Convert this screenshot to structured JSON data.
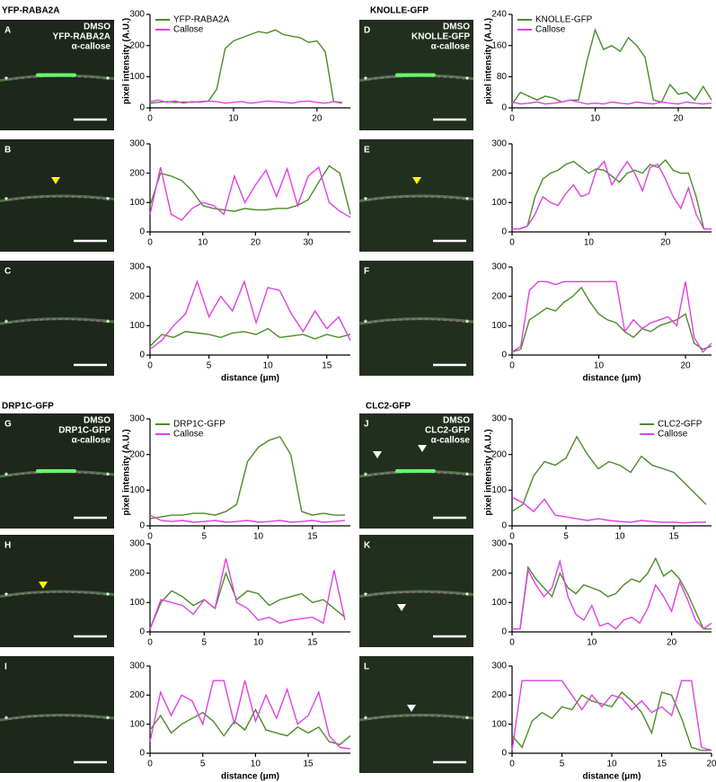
{
  "titles": [
    "YFP-RABA2A",
    "KNOLLE-GFP",
    "DRP1C-GFP",
    "CLC2-GFP"
  ],
  "panels": [
    {
      "letter": "A",
      "labels": [
        "DMSO",
        "YFP-RABA2A",
        "α-callose"
      ]
    },
    {
      "letter": "B"
    },
    {
      "letter": "C"
    },
    {
      "letter": "D",
      "labels": [
        "DMSO",
        "KNOLLE-GFP",
        "α-callose"
      ]
    },
    {
      "letter": "E"
    },
    {
      "letter": "F"
    },
    {
      "letter": "G",
      "labels": [
        "DMSO",
        "DRP1C-GFP",
        "α-callose"
      ]
    },
    {
      "letter": "H"
    },
    {
      "letter": "I"
    },
    {
      "letter": "J",
      "labels": [
        "DMSO",
        "CLC2-GFP",
        "α-callose"
      ]
    },
    {
      "letter": "K"
    },
    {
      "letter": "L"
    }
  ],
  "chart_data": [
    {
      "type": "line",
      "ylabel": "pixel intensity (A.U.)",
      "legend": "upper left",
      "xlim": [
        0,
        24
      ],
      "xticks": [
        0,
        10,
        20
      ],
      "ylim": [
        0,
        300
      ],
      "yticks": [
        0,
        100,
        200,
        300
      ],
      "x": [
        0,
        1,
        2,
        3,
        4,
        5,
        6,
        7,
        8,
        9,
        10,
        11,
        12,
        13,
        14,
        15,
        16,
        17,
        18,
        19,
        20,
        21,
        22,
        23
      ],
      "series": [
        {
          "name": "YFP-RABA2A",
          "color": "#4a8c2a",
          "values": [
            15,
            18,
            20,
            17,
            19,
            18,
            20,
            22,
            60,
            190,
            215,
            225,
            235,
            245,
            240,
            250,
            235,
            230,
            225,
            210,
            215,
            180,
            20,
            15
          ]
        },
        {
          "name": "Callose",
          "color": "#e040e0",
          "values": [
            20,
            25,
            18,
            22,
            15,
            20,
            18,
            22,
            20,
            15,
            18,
            20,
            15,
            18,
            22,
            20,
            18,
            15,
            20,
            22,
            18,
            15,
            20,
            18
          ]
        }
      ]
    },
    {
      "type": "line",
      "xlim": [
        0,
        38
      ],
      "xticks": [
        0,
        10,
        20,
        30
      ],
      "ylim": [
        0,
        300
      ],
      "yticks": [
        0,
        100,
        200,
        300
      ],
      "x": [
        0,
        2,
        4,
        6,
        8,
        10,
        12,
        14,
        16,
        18,
        20,
        22,
        24,
        26,
        28,
        30,
        32,
        34,
        36,
        38
      ],
      "series": [
        {
          "color": "#4a8c2a",
          "values": [
            90,
            200,
            190,
            175,
            140,
            90,
            80,
            75,
            70,
            80,
            75,
            75,
            80,
            80,
            90,
            110,
            170,
            225,
            200,
            60
          ]
        },
        {
          "color": "#e040e0",
          "values": [
            60,
            220,
            60,
            40,
            80,
            100,
            90,
            60,
            190,
            100,
            160,
            210,
            120,
            215,
            90,
            190,
            220,
            100,
            70,
            50
          ]
        }
      ]
    },
    {
      "type": "line",
      "xlabel": "distance (μm)",
      "xlim": [
        0,
        17
      ],
      "xticks": [
        0,
        5,
        10,
        15
      ],
      "ylim": [
        0,
        300
      ],
      "yticks": [
        0,
        100,
        200,
        300
      ],
      "x": [
        0,
        1,
        2,
        3,
        4,
        5,
        6,
        7,
        8,
        9,
        10,
        11,
        12,
        13,
        14,
        15,
        16,
        17
      ],
      "series": [
        {
          "color": "#4a8c2a",
          "values": [
            30,
            70,
            60,
            80,
            75,
            70,
            60,
            75,
            80,
            70,
            90,
            60,
            65,
            70,
            55,
            70,
            60,
            70
          ]
        },
        {
          "color": "#e040e0",
          "values": [
            20,
            50,
            100,
            140,
            250,
            130,
            200,
            150,
            250,
            110,
            230,
            220,
            140,
            80,
            150,
            90,
            130,
            50
          ]
        }
      ]
    },
    {
      "type": "line",
      "ylabel": "pixel intensity (A.U.)",
      "legend": "upper left",
      "xlim": [
        0,
        24
      ],
      "xticks": [
        0,
        10,
        20
      ],
      "ylim": [
        0,
        240
      ],
      "yticks": [
        0,
        80,
        160,
        240
      ],
      "x": [
        0,
        1,
        2,
        3,
        4,
        5,
        6,
        7,
        8,
        9,
        10,
        11,
        12,
        13,
        14,
        15,
        16,
        17,
        18,
        19,
        20,
        21,
        22,
        23,
        24
      ],
      "series": [
        {
          "name": "KNOLLE-GFP",
          "color": "#4a8c2a",
          "values": [
            10,
            40,
            30,
            20,
            30,
            25,
            15,
            20,
            20,
            120,
            200,
            150,
            160,
            145,
            180,
            160,
            130,
            20,
            15,
            60,
            35,
            40,
            20,
            55,
            20
          ]
        },
        {
          "name": "Callose",
          "color": "#e040e0",
          "values": [
            15,
            10,
            12,
            15,
            10,
            12,
            15,
            20,
            15,
            10,
            12,
            10,
            15,
            12,
            10,
            15,
            12,
            10,
            15,
            12,
            10,
            15,
            12,
            10,
            12
          ]
        }
      ]
    },
    {
      "type": "line",
      "xlim": [
        0,
        26
      ],
      "xticks": [
        0,
        10,
        20
      ],
      "ylim": [
        0,
        300
      ],
      "yticks": [
        0,
        100,
        200,
        300
      ],
      "x": [
        0,
        1,
        2,
        3,
        4,
        5,
        6,
        7,
        8,
        9,
        10,
        11,
        12,
        13,
        14,
        15,
        16,
        17,
        18,
        19,
        20,
        21,
        22,
        23,
        24,
        25,
        26
      ],
      "series": [
        {
          "color": "#4a8c2a",
          "values": [
            10,
            10,
            20,
            120,
            180,
            200,
            210,
            230,
            240,
            220,
            200,
            215,
            210,
            190,
            170,
            200,
            210,
            200,
            230,
            220,
            245,
            210,
            200,
            200,
            120,
            10,
            10
          ]
        },
        {
          "color": "#e040e0",
          "values": [
            10,
            10,
            20,
            60,
            120,
            100,
            90,
            130,
            160,
            120,
            130,
            210,
            240,
            160,
            200,
            240,
            200,
            140,
            220,
            230,
            180,
            120,
            80,
            150,
            60,
            10,
            10
          ]
        }
      ]
    },
    {
      "type": "line",
      "xlabel": "distance (μm)",
      "xlim": [
        0,
        23
      ],
      "xticks": [
        0,
        10,
        20
      ],
      "ylim": [
        0,
        300
      ],
      "yticks": [
        0,
        100,
        200,
        300
      ],
      "x": [
        0,
        1,
        2,
        3,
        4,
        5,
        6,
        7,
        8,
        9,
        10,
        11,
        12,
        13,
        14,
        15,
        16,
        17,
        18,
        19,
        20,
        21,
        22,
        23
      ],
      "series": [
        {
          "color": "#4a8c2a",
          "values": [
            10,
            20,
            120,
            140,
            160,
            150,
            180,
            200,
            230,
            180,
            140,
            120,
            110,
            80,
            60,
            90,
            80,
            100,
            110,
            120,
            140,
            40,
            20,
            30
          ]
        },
        {
          "color": "#e040e0",
          "values": [
            10,
            30,
            220,
            250,
            250,
            240,
            250,
            250,
            250,
            250,
            250,
            250,
            250,
            80,
            120,
            90,
            110,
            120,
            130,
            100,
            250,
            60,
            10,
            40
          ]
        }
      ]
    },
    {
      "type": "line",
      "ylabel": "pixel intensity (A.U.)",
      "legend": "upper left",
      "xlim": [
        0,
        18.5
      ],
      "xticks": [
        0,
        5,
        10,
        15
      ],
      "ylim": [
        0,
        300
      ],
      "yticks": [
        0,
        100,
        200,
        300
      ],
      "x": [
        0,
        1,
        2,
        3,
        4,
        5,
        6,
        7,
        8,
        9,
        10,
        11,
        12,
        13,
        14,
        15,
        16,
        17,
        18
      ],
      "series": [
        {
          "name": "DRP1C-GFP",
          "color": "#4a8c2a",
          "values": [
            20,
            25,
            30,
            30,
            35,
            35,
            30,
            40,
            60,
            180,
            220,
            240,
            250,
            200,
            40,
            30,
            35,
            30,
            30
          ]
        },
        {
          "name": "Callose",
          "color": "#e040e0",
          "values": [
            30,
            15,
            12,
            15,
            10,
            12,
            15,
            10,
            12,
            15,
            10,
            12,
            15,
            10,
            12,
            15,
            10,
            12,
            15
          ]
        }
      ]
    },
    {
      "type": "line",
      "xlim": [
        0,
        18.5
      ],
      "xticks": [
        0,
        5,
        10,
        15
      ],
      "ylim": [
        0,
        300
      ],
      "yticks": [
        0,
        100,
        200,
        300
      ],
      "x": [
        0,
        1,
        2,
        3,
        4,
        5,
        6,
        7,
        8,
        9,
        10,
        11,
        12,
        13,
        14,
        15,
        16,
        17,
        18
      ],
      "series": [
        {
          "color": "#4a8c2a",
          "values": [
            10,
            100,
            140,
            120,
            90,
            110,
            80,
            200,
            110,
            140,
            130,
            90,
            110,
            120,
            130,
            100,
            110,
            80,
            50
          ]
        },
        {
          "color": "#e040e0",
          "values": [
            10,
            110,
            100,
            90,
            60,
            110,
            80,
            250,
            100,
            80,
            40,
            50,
            30,
            40,
            45,
            50,
            30,
            210,
            40
          ]
        }
      ]
    },
    {
      "type": "line",
      "xlabel": "distance (μm)",
      "xlim": [
        0,
        19
      ],
      "xticks": [
        0,
        5,
        10,
        15
      ],
      "ylim": [
        0,
        300
      ],
      "yticks": [
        0,
        100,
        200,
        300
      ],
      "x": [
        0,
        1,
        2,
        3,
        4,
        5,
        6,
        7,
        8,
        9,
        10,
        11,
        12,
        13,
        14,
        15,
        16,
        17,
        18,
        19
      ],
      "series": [
        {
          "color": "#4a8c2a",
          "values": [
            80,
            130,
            70,
            100,
            120,
            140,
            110,
            60,
            110,
            80,
            150,
            80,
            70,
            60,
            90,
            70,
            90,
            40,
            30,
            60
          ]
        },
        {
          "color": "#e040e0",
          "values": [
            40,
            210,
            130,
            200,
            180,
            100,
            250,
            250,
            100,
            250,
            110,
            200,
            120,
            220,
            100,
            130,
            210,
            60,
            20,
            15
          ]
        }
      ]
    },
    {
      "type": "line",
      "ylabel": "pixel intensity (A.U.)",
      "legend": "upper right",
      "xlim": [
        0,
        18.5
      ],
      "xticks": [
        0,
        5,
        10,
        15
      ],
      "ylim": [
        0,
        300
      ],
      "yticks": [
        0,
        100,
        200,
        300
      ],
      "x": [
        0,
        1,
        2,
        3,
        4,
        5,
        6,
        7,
        8,
        9,
        10,
        11,
        12,
        13,
        14,
        15,
        16,
        17,
        18
      ],
      "series": [
        {
          "name": "CLC2-GFP",
          "color": "#4a8c2a",
          "values": [
            40,
            60,
            140,
            180,
            170,
            190,
            250,
            200,
            160,
            180,
            170,
            150,
            195,
            170,
            160,
            150,
            120,
            90,
            60
          ]
        },
        {
          "name": "Callose",
          "color": "#e040e0",
          "values": [
            80,
            65,
            40,
            75,
            30,
            25,
            20,
            15,
            20,
            15,
            12,
            10,
            15,
            12,
            10,
            10,
            8,
            10,
            10
          ]
        }
      ]
    },
    {
      "type": "line",
      "xlim": [
        0,
        25
      ],
      "xticks": [
        0,
        10,
        20
      ],
      "ylim": [
        0,
        300
      ],
      "yticks": [
        0,
        100,
        200,
        300
      ],
      "x": [
        0,
        1,
        2,
        3,
        4,
        5,
        6,
        7,
        8,
        9,
        10,
        11,
        12,
        13,
        14,
        15,
        16,
        17,
        18,
        19,
        20,
        21,
        22,
        23,
        24,
        25
      ],
      "series": [
        {
          "color": "#4a8c2a",
          "values": [
            10,
            10,
            220,
            180,
            150,
            120,
            200,
            150,
            130,
            160,
            150,
            140,
            120,
            130,
            160,
            180,
            170,
            200,
            250,
            190,
            210,
            180,
            130,
            70,
            10,
            10
          ]
        },
        {
          "color": "#e040e0",
          "values": [
            10,
            10,
            210,
            160,
            120,
            150,
            240,
            120,
            60,
            40,
            90,
            20,
            30,
            10,
            40,
            50,
            30,
            80,
            160,
            120,
            70,
            170,
            110,
            40,
            10,
            30
          ]
        }
      ]
    },
    {
      "type": "line",
      "xlabel": "distance (μm)",
      "xlim": [
        0,
        20
      ],
      "xticks": [
        0,
        5,
        10,
        15,
        20
      ],
      "ylim": [
        0,
        300
      ],
      "yticks": [
        0,
        100,
        200,
        300
      ],
      "x": [
        0,
        1,
        2,
        3,
        4,
        5,
        6,
        7,
        8,
        9,
        10,
        11,
        12,
        13,
        14,
        15,
        16,
        17,
        18,
        19,
        20
      ],
      "series": [
        {
          "color": "#4a8c2a",
          "values": [
            60,
            20,
            110,
            140,
            120,
            160,
            150,
            200,
            180,
            170,
            160,
            210,
            180,
            140,
            70,
            210,
            200,
            120,
            20,
            10,
            10
          ]
        },
        {
          "color": "#e040e0",
          "values": [
            10,
            250,
            250,
            250,
            250,
            250,
            200,
            150,
            200,
            160,
            200,
            190,
            150,
            180,
            140,
            160,
            130,
            250,
            250,
            20,
            10
          ]
        }
      ]
    }
  ]
}
